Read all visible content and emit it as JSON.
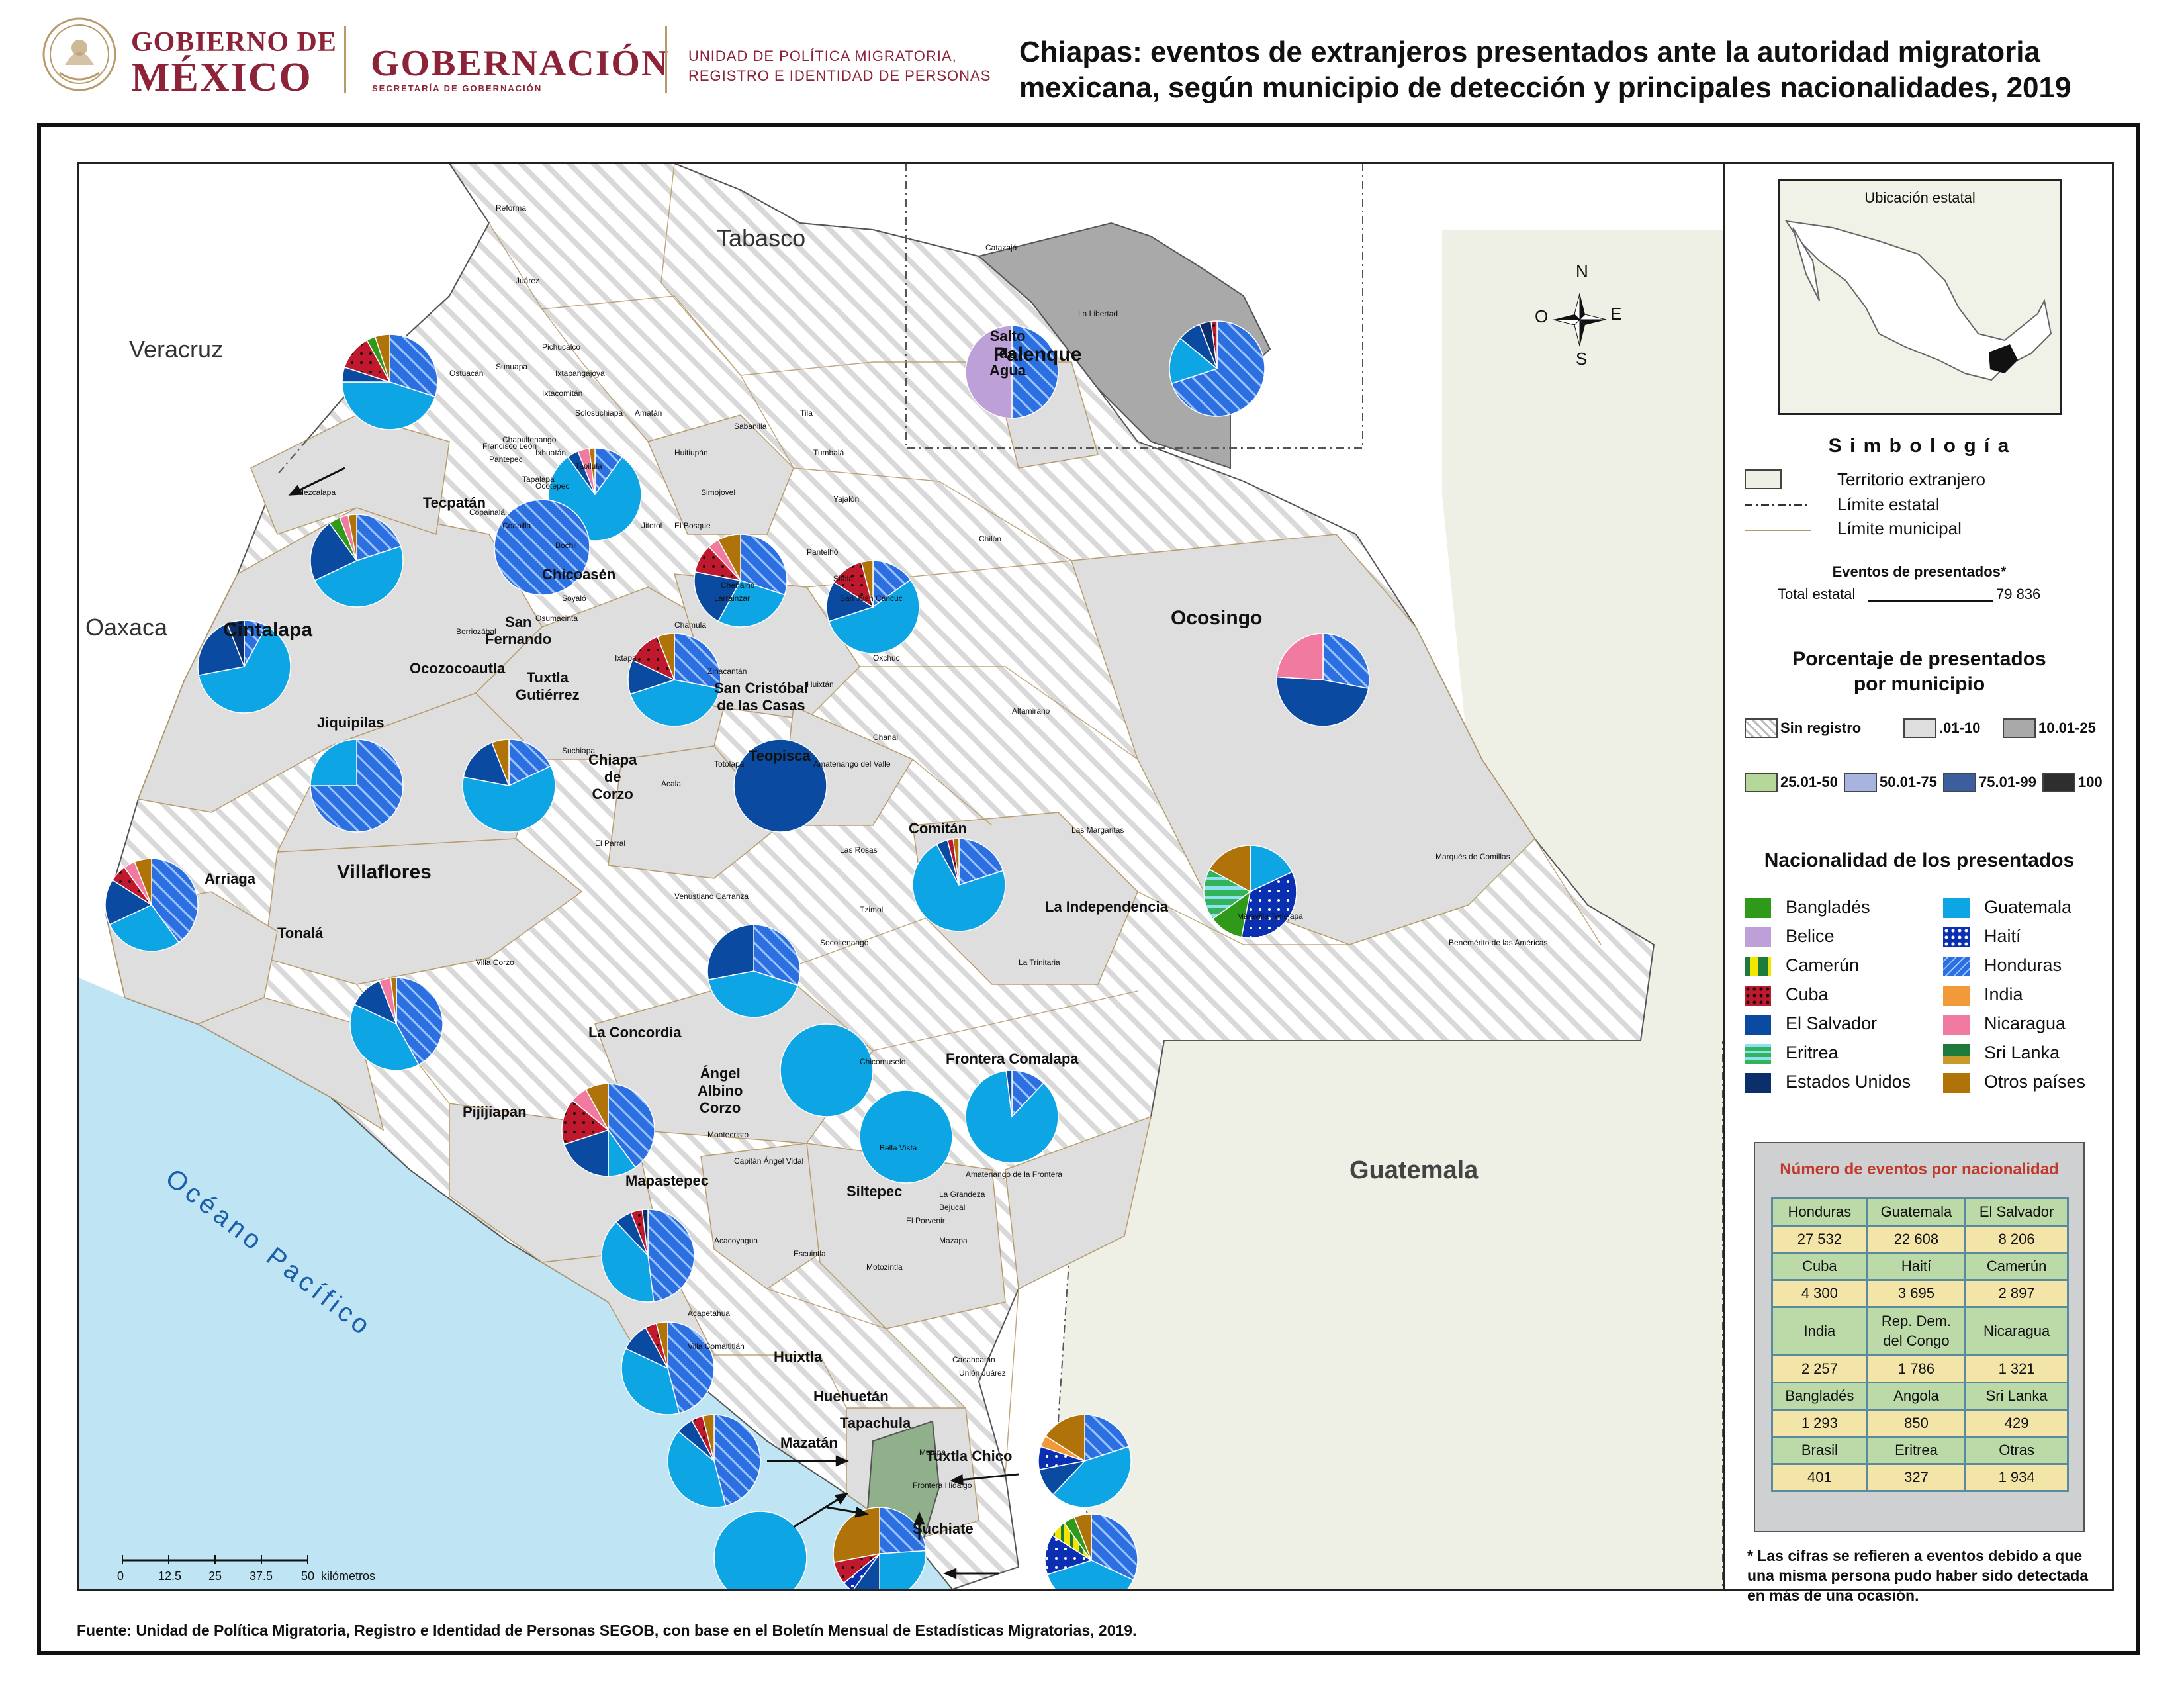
{
  "header": {
    "gobierno_line1": "GOBIERNO DE",
    "gobierno_line2": "MÉXICO",
    "gobernacion": "GOBERNACIÓN",
    "gobernacion_sub": "SECRETARÍA DE GOBERNACIÓN",
    "unidad_line1": "UNIDAD DE POLÍTICA MIGRATORIA,",
    "unidad_line2": "REGISTRO E IDENTIDAD DE PERSONAS",
    "title_line1": "Chiapas: eventos de extranjeros presentados ante la autoridad migratoria",
    "title_line2": "mexicana, según municipio de detección y principales nacionalidades, 2019"
  },
  "colors": {
    "honduras": "#2b6fe0",
    "guatemala": "#0ea5e4",
    "el_salvador": "#0a4aa0",
    "haiti": "#0a2fb0",
    "cuba": "#c0182c",
    "nicaragua": "#f07aa0",
    "otros": "#b0730a",
    "belice": "#bda0d8",
    "bangladesh": "#2f9a1a",
    "india": "#f29a3a",
    "eritrea": "#33b35a",
    "estados_unidos": "#0a2f6a",
    "sri_lanka": "#1e7a3a",
    "camerun": "#f2e600",
    "tapachula_fill": "#8fb08a",
    "ocean": "#bfe5f5",
    "foreign": "#eef0e6",
    "range_01_10": "#dedede",
    "range_10_25": "#a9a9a9"
  },
  "map": {
    "countries": {
      "tabasco": "Tabasco",
      "veracruz": "Veracruz",
      "oaxaca": "Oaxaca",
      "guatemala": "Guatemala"
    },
    "ocean": "Océano Pacífico",
    "compass": {
      "n": "N",
      "s": "S",
      "e": "E",
      "o": "O"
    },
    "scale": {
      "ticks": [
        "0",
        "12.5",
        "25",
        "37.5",
        "50"
      ],
      "unit": "kilómetros"
    },
    "big_labels": [
      "Palenque",
      "Ocosingo",
      "Cintalapa",
      "Villaflores",
      "Comitán"
    ],
    "mid_labels": {
      "salto": "Salto\nde\nAgua",
      "tecpatan": "Tecpatán",
      "chicoasen": "Chicoasén",
      "san_fernando": "San\nFernando",
      "tuxtla": "Tuxtla\nGutiérrez",
      "ocozocoautla": "Ocozocoautla",
      "jiquipilas": "Jiquipilas",
      "chiapa": "Chiapa\nde\nCorzo",
      "san_cristobal": "San Cristóbal\nde las Casas",
      "teopisca": "Teopisca",
      "arriaga": "Arriaga",
      "tonala": "Tonalá",
      "la_concordia": "La Concordia",
      "pijijiapan": "Pijijiapan",
      "angel": "Ángel\nAlbino\nCorzo",
      "frontera": "Frontera Comalapa",
      "la_independencia": "La Independencia",
      "mapastepec": "Mapastepec",
      "siltepec": "Siltepec",
      "huixtla": "Huixtla",
      "huehuetan": "Huehuetán",
      "tapachula": "Tapachula",
      "tuxtla_chico": "Tuxtla Chico",
      "mazatan": "Mazatán",
      "suchiate": "Suchiate"
    },
    "small_labels": [
      "Reforma",
      "Juárez",
      "Pichucalco",
      "Ostuacán",
      "Sunuapa",
      "Ixtapangajoya",
      "Ixtacomitán",
      "Solosuchiapa",
      "Amatán",
      "Francisco León",
      "Chapultenango",
      "Ixhuatán",
      "Pantepec",
      "Tapalapa",
      "Tapilula",
      "Ocotepec",
      "Bochil",
      "Jitotol",
      "Copainalá",
      "Coapilla",
      "Mezcalapa",
      "Soyaló",
      "Osumacinta",
      "Berriozábal",
      "Huitiupán",
      "Sabanilla",
      "Tila",
      "Tumbalá",
      "Yajalón",
      "Simojovel",
      "El Bosque",
      "Chilón",
      "Pantelhó",
      "Sitalá",
      "Chenalhó",
      "Larráinzar",
      "Chamula",
      "Ixtapa",
      "Zinacantán",
      "Huixtán",
      "Oxchuc",
      "San Juan Cancuc",
      "Chanal",
      "Altamirano",
      "Catazajá",
      "La Libertad",
      "Suchiapa",
      "Acala",
      "Totolapa",
      "Amatenango del Valle",
      "Las Rosas",
      "Venustiano Carranza",
      "El Parral",
      "Villa Corzo",
      "Socoltenango",
      "Tzimol",
      "Las Margaritas",
      "La Trinitaria",
      "Maravilla Tenejapa",
      "Marqués de Comillas",
      "Benemérito de las Américas",
      "Chicomuselo",
      "Montecristo",
      "Bella Vista",
      "Capitán Ángel Vidal",
      "Amatenango de la Frontera",
      "La Grandeza",
      "Bejucal",
      "El Porvenir",
      "Mazapa",
      "Acacoyagua",
      "Escuintla",
      "Motozintla",
      "Acapetahua",
      "Villa Comaltitlán",
      "Cacahoatán",
      "Unión Juárez",
      "Metapa",
      "Frontera Hidalgo"
    ]
  },
  "legend": {
    "ubicacion": "Ubicación estatal",
    "simbologia": "S i m b o l o g í a",
    "territorio": "Territorio extranjero",
    "limite_estatal": "Límite estatal",
    "limite_municipal": "Límite municipal",
    "eventos_title": "Eventos de presentados*",
    "total_label": "Total estatal",
    "total_value": "79 836",
    "porcentaje_title_1": "Porcentaje de presentados",
    "porcentaje_title_2": "por municipio",
    "ranges": [
      "Sin registro",
      ".01-10",
      "10.01-25",
      "25.01-50",
      "50.01-75",
      "75.01-99",
      "100"
    ],
    "range_colors": [
      "#ffffff",
      "#dedede",
      "#a9a9a9",
      "#b5d79a",
      "#a8b4e0",
      "#3c5e9c",
      "#2e2e2e"
    ],
    "nacionalidad_title": "Nacionalidad de los presentados",
    "nationalities_left": [
      "Bangladés",
      "Belice",
      "Camerún",
      "Cuba",
      "El Salvador",
      "Eritrea",
      "Estados Unidos"
    ],
    "nationalities_right": [
      "Guatemala",
      "Haití",
      "Honduras",
      "India",
      "Nicaragua",
      "Sri Lanka",
      "Otros países"
    ]
  },
  "table": {
    "title": "Número de eventos por nacionalidad",
    "rows": [
      {
        "names": [
          "Honduras",
          "Guatemala",
          "El Salvador"
        ],
        "values": [
          "27 532",
          "22 608",
          "8 206"
        ]
      },
      {
        "names": [
          "Cuba",
          "Haití",
          "Camerún"
        ],
        "values": [
          "4 300",
          "3 695",
          "2 897"
        ]
      },
      {
        "names": [
          "India",
          "Rep. Dem.\ndel Congo",
          "Nicaragua"
        ],
        "values": [
          "2 257",
          "1 786",
          "1 321"
        ]
      },
      {
        "names": [
          "Bangladés",
          "Angola",
          "Sri Lanka"
        ],
        "values": [
          "1 293",
          "850",
          "429"
        ]
      },
      {
        "names": [
          "Brasil",
          "Eritrea",
          "Otras"
        ],
        "values": [
          "401",
          "327",
          "1 934"
        ]
      }
    ]
  },
  "note": "* Las cifras se refieren a eventos debido a que una misma persona pudo haber sido detectada en más de una ocasión.",
  "source": "Fuente: Unidad de Política Migratoria, Registro e Identidad de Personas SEGOB, con base en el Boletín Mensual de Estadísticas Migratorias, 2019."
}
